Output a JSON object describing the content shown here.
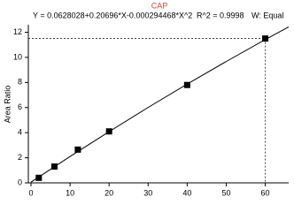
{
  "chart_data": {
    "type": "scatter",
    "title": "CAP",
    "equation": "Y = 0.0628028+0.20696*X-0.000294468*X^2",
    "r_squared": "R^2 = 0.9998",
    "weighting": "W: Equal",
    "y_label": "Area Ratio",
    "x": [
      2,
      6,
      12,
      20,
      40,
      60
    ],
    "values": [
      0.4,
      1.3,
      2.65,
      4.1,
      7.8,
      11.5
    ],
    "color": "#000000",
    "fit": {
      "x": [
        0,
        10,
        20,
        30,
        40,
        50,
        60,
        66
      ],
      "values": [
        0.06,
        2.1,
        4.08,
        6.01,
        7.87,
        9.67,
        11.42,
        12.43
      ],
      "color": "#000000"
    },
    "xlim": [
      0,
      66
    ],
    "xticks": [
      0,
      10,
      20,
      30,
      40,
      50,
      60
    ],
    "ylim": [
      0,
      12.6
    ],
    "yticks": [
      0,
      2,
      4,
      6,
      8,
      10,
      12
    ],
    "title_color": "#e8402a"
  }
}
